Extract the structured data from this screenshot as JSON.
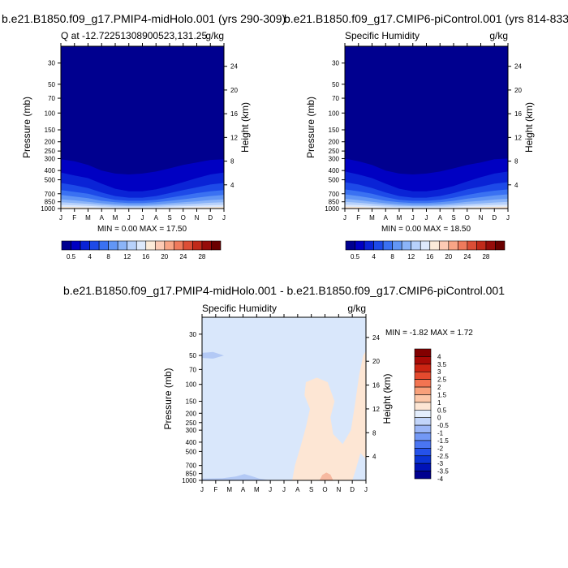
{
  "panels": [
    {
      "title": "b.e21.B1850.f09_g17.PMIP4-midHolo.001 (yrs 290-309)",
      "subtitle_left": "Q at -12.72251308900523,131.25",
      "subtitle_right": "g/kg",
      "minmax": "MIN =   0.00 MAX =  17.50"
    },
    {
      "title": "b.e21.B1850.f09_g17.CMIP6-piControl.001 (yrs 814-833)",
      "subtitle_left": "Specific Humidity",
      "subtitle_right": "g/kg",
      "minmax": "MIN =   0.00 MAX =  18.50"
    },
    {
      "title": "b.e21.B1850.f09_g17.PMIP4-midHolo.001 - b.e21.B1850.f09_g17.CMIP6-piControl.001",
      "subtitle_left": "Specific Humidity",
      "subtitle_right": "g/kg",
      "minmax": "MIN =  -1.82 MAX =   1.72"
    }
  ],
  "chart_data": [
    {
      "type": "heatmap",
      "title": "b.e21.B1850.f09_g17.PMIP4-midHolo.001 (yrs 290-309)",
      "x": [
        "J",
        "F",
        "M",
        "A",
        "M",
        "J",
        "J",
        "A",
        "S",
        "O",
        "N",
        "D",
        "J"
      ],
      "y_left_ticks": [
        30,
        50,
        70,
        100,
        150,
        200,
        250,
        300,
        400,
        500,
        700,
        850,
        1000
      ],
      "y_right_ticks": [
        24,
        20,
        16,
        12,
        8,
        4
      ],
      "ylabel": "Pressure (mb)",
      "ylabel_right": "Height (km)",
      "ylim": [
        1000,
        20
      ],
      "log_y": true,
      "min": 0.0,
      "max": 17.5,
      "contours_p_mb": [
        {
          "level": 0.5,
          "p": [
            305,
            320,
            350,
            400,
            430,
            440,
            430,
            410,
            380,
            350,
            330,
            310,
            305
          ]
        },
        {
          "level": 2,
          "p": [
            420,
            450,
            480,
            550,
            620,
            660,
            660,
            630,
            580,
            530,
            480,
            440,
            420
          ]
        },
        {
          "level": 4,
          "p": [
            540,
            570,
            610,
            680,
            740,
            770,
            770,
            740,
            690,
            640,
            600,
            560,
            540
          ]
        },
        {
          "level": 6,
          "p": [
            640,
            670,
            700,
            760,
            810,
            830,
            830,
            810,
            770,
            730,
            690,
            660,
            640
          ]
        },
        {
          "level": 8,
          "p": [
            720,
            750,
            780,
            830,
            860,
            875,
            875,
            860,
            830,
            800,
            770,
            740,
            720
          ]
        },
        {
          "level": 10,
          "p": [
            800,
            820,
            850,
            880,
            905,
            915,
            915,
            905,
            880,
            860,
            840,
            815,
            800
          ]
        },
        {
          "level": 12,
          "p": [
            860,
            875,
            895,
            920,
            935,
            945,
            945,
            935,
            920,
            905,
            890,
            870,
            860
          ]
        },
        {
          "level": 14,
          "p": [
            915,
            925,
            940,
            955,
            965,
            970,
            970,
            965,
            955,
            945,
            935,
            925,
            915
          ]
        },
        {
          "level": 16,
          "p": [
            960,
            965,
            975,
            985,
            990,
            993,
            993,
            990,
            985,
            980,
            972,
            965,
            960
          ]
        }
      ],
      "colorbar": {
        "labels": [
          "0.5",
          "4",
          "8",
          "12",
          "16",
          "20",
          "24",
          "28"
        ]
      }
    },
    {
      "type": "heatmap",
      "title": "b.e21.B1850.f09_g17.CMIP6-piControl.001 (yrs 814-833)",
      "x": [
        "J",
        "F",
        "M",
        "A",
        "M",
        "J",
        "J",
        "A",
        "S",
        "O",
        "N",
        "D",
        "J"
      ],
      "y_left_ticks": [
        30,
        50,
        70,
        100,
        150,
        200,
        250,
        300,
        400,
        500,
        700,
        850,
        1000
      ],
      "y_right_ticks": [
        24,
        20,
        16,
        12,
        8,
        4
      ],
      "ylabel": "Pressure (mb)",
      "ylabel_right": "Height (km)",
      "ylim": [
        1000,
        20
      ],
      "log_y": true,
      "min": 0.0,
      "max": 18.5,
      "contours_p_mb": [
        {
          "level": 0.5,
          "p": [
            300,
            320,
            350,
            400,
            430,
            440,
            430,
            410,
            380,
            350,
            330,
            305,
            300
          ]
        },
        {
          "level": 2,
          "p": [
            410,
            440,
            480,
            550,
            620,
            660,
            660,
            630,
            580,
            520,
            470,
            430,
            410
          ]
        },
        {
          "level": 4,
          "p": [
            530,
            560,
            610,
            680,
            740,
            770,
            770,
            740,
            690,
            630,
            590,
            550,
            530
          ]
        },
        {
          "level": 6,
          "p": [
            630,
            660,
            700,
            760,
            810,
            830,
            830,
            810,
            770,
            720,
            680,
            650,
            630
          ]
        },
        {
          "level": 8,
          "p": [
            710,
            740,
            780,
            830,
            860,
            875,
            875,
            860,
            830,
            790,
            760,
            730,
            710
          ]
        },
        {
          "level": 10,
          "p": [
            790,
            815,
            850,
            880,
            905,
            915,
            915,
            905,
            880,
            850,
            830,
            805,
            790
          ]
        },
        {
          "level": 12,
          "p": [
            850,
            870,
            895,
            920,
            935,
            945,
            945,
            935,
            920,
            900,
            885,
            865,
            850
          ]
        },
        {
          "level": 14,
          "p": [
            910,
            920,
            940,
            955,
            965,
            970,
            970,
            965,
            955,
            940,
            930,
            918,
            910
          ]
        },
        {
          "level": 16,
          "p": [
            955,
            962,
            975,
            985,
            990,
            993,
            993,
            990,
            985,
            975,
            968,
            960,
            955
          ]
        },
        {
          "level": 18,
          "p": [
            985,
            988,
            992,
            996,
            998,
            999,
            999,
            998,
            996,
            992,
            990,
            987,
            985
          ]
        }
      ],
      "colorbar": {
        "labels": [
          "0.5",
          "4",
          "8",
          "12",
          "16",
          "20",
          "24",
          "28"
        ]
      }
    },
    {
      "type": "heatmap",
      "title": "b.e21.B1850.f09_g17.PMIP4-midHolo.001 - b.e21.B1850.f09_g17.CMIP6-piControl.001",
      "x": [
        "J",
        "F",
        "M",
        "A",
        "M",
        "J",
        "J",
        "A",
        "S",
        "O",
        "N",
        "D",
        "J"
      ],
      "y_left_ticks": [
        30,
        50,
        70,
        100,
        150,
        200,
        250,
        300,
        400,
        500,
        700,
        850,
        1000
      ],
      "y_right_ticks": [
        24,
        20,
        16,
        12,
        8,
        4
      ],
      "ylabel": "Pressure (mb)",
      "ylabel_right": "Height (km)",
      "ylim": [
        1000,
        20
      ],
      "log_y": true,
      "min": -1.82,
      "max": 1.72,
      "background_range": [
        -0.5,
        0
      ],
      "features": [
        {
          "range": [
            0,
            0.5
          ],
          "region": "Aug-Dec, 90-1000 mb"
        },
        {
          "range": [
            -1.0,
            -0.5
          ],
          "region": "Jan-May near 1000 mb, peak in Apr"
        },
        {
          "range": [
            -1.0,
            -0.5
          ],
          "region": "Jan-Feb near 50 mb"
        },
        {
          "range": [
            0.5,
            1.0
          ],
          "region": "Oct near 1000 mb"
        }
      ],
      "colorbar": {
        "labels": [
          "4",
          "3.5",
          "3",
          "2.5",
          "2",
          "1.5",
          "1",
          "0.5",
          "0",
          "-0.5",
          "-1",
          "-1.5",
          "-2",
          "-2.5",
          "-3",
          "-3.5",
          "-4"
        ]
      }
    }
  ],
  "colors": {
    "seq": [
      "#00008f",
      "#0000c2",
      "#0a23d6",
      "#1d4ae8",
      "#3a71f2",
      "#6296f5",
      "#8bb4f8",
      "#b7d1fb",
      "#dde9fc",
      "#fcebd9",
      "#fccab4",
      "#f8a586",
      "#ef7a5c",
      "#dc4e36",
      "#c12a1a",
      "#960c0a",
      "#6a0000"
    ],
    "div": [
      "#00008f",
      "#0013b8",
      "#0b34d5",
      "#2552ea",
      "#4a75f2",
      "#7398f5",
      "#9bb6f7",
      "#c2d5fa",
      "#e3edfc",
      "#fde6d4",
      "#fcc7a8",
      "#f8a07a",
      "#f27451",
      "#e44a2e",
      "#cc2412",
      "#a80a06",
      "#820000"
    ]
  }
}
